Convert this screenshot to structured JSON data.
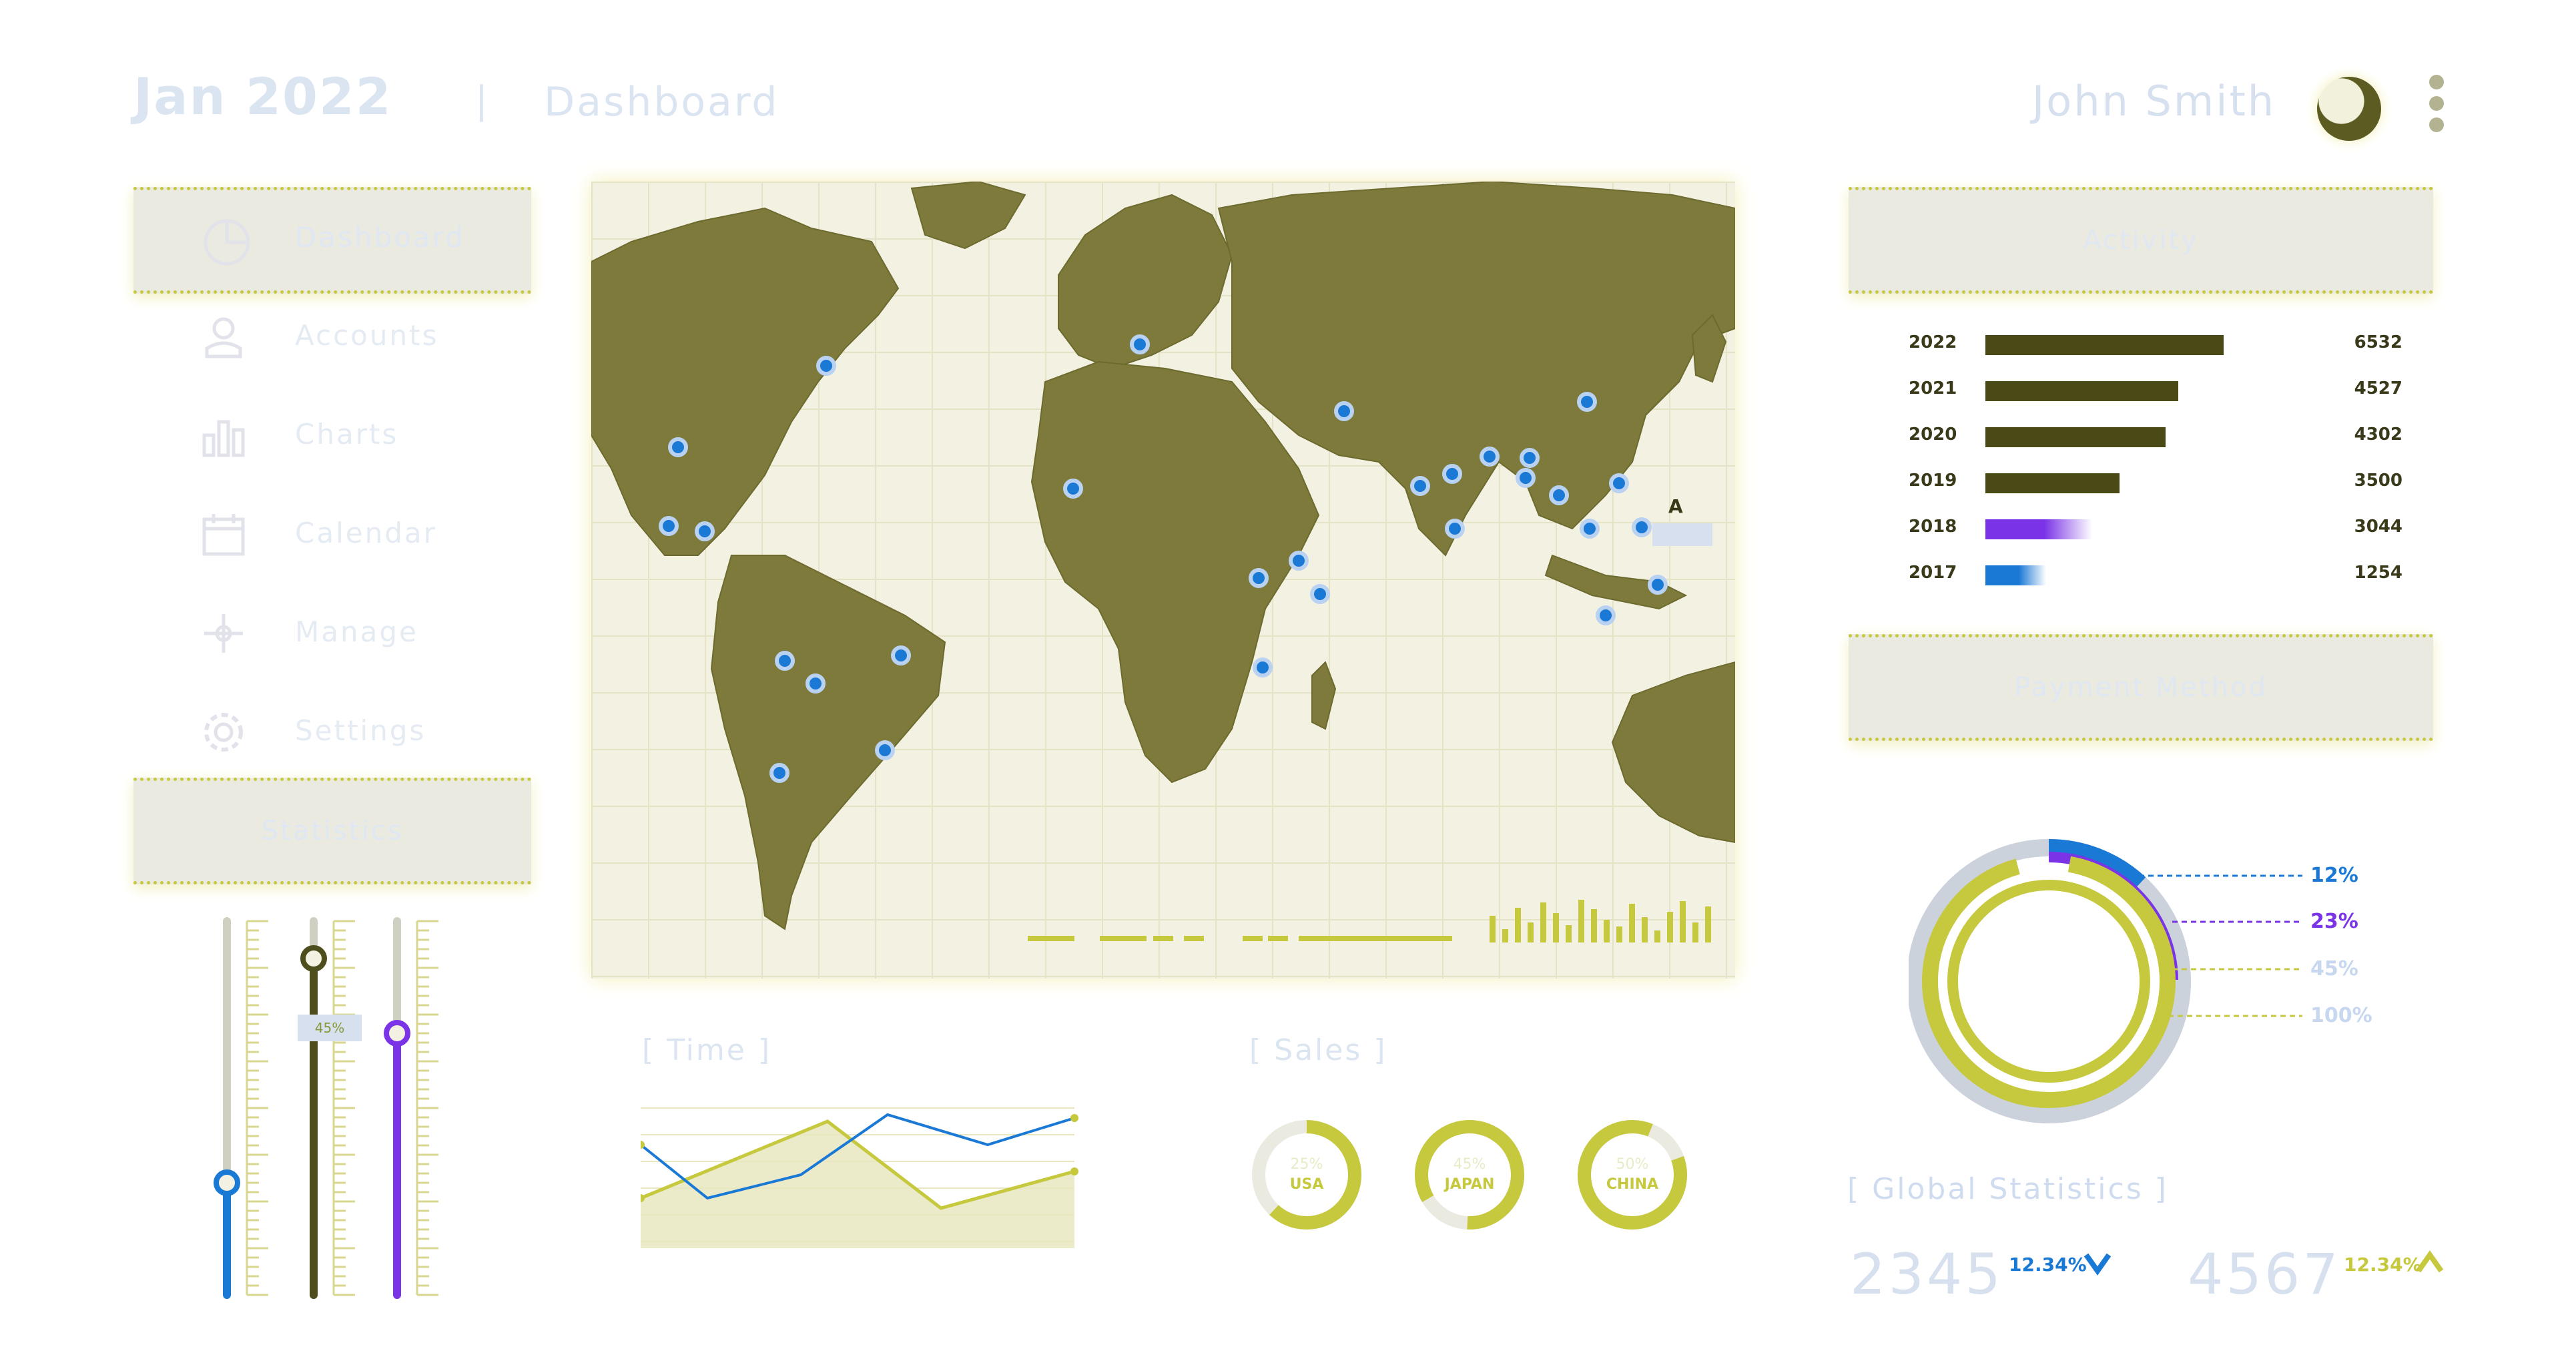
{
  "header": {
    "date": "Jan 2022",
    "separator": "|",
    "section": "Dashboard",
    "user_name": "John Smith"
  },
  "nav": {
    "items": [
      {
        "label": "Dashboard",
        "icon": "pie-chart-icon",
        "active": true
      },
      {
        "label": "Accounts",
        "icon": "user-icon"
      },
      {
        "label": "Charts",
        "icon": "bar-chart-icon"
      },
      {
        "label": "Calendar",
        "icon": "calendar-icon"
      },
      {
        "label": "Manage",
        "icon": "manage-icon"
      },
      {
        "label": "Settings",
        "icon": "gear-icon"
      }
    ],
    "statistics_label": "Statistics"
  },
  "sliders": {
    "values": [
      0.3,
      0.9,
      0.7
    ],
    "colors": [
      "#1b79d6",
      "#4d4d1e",
      "#7a33e6"
    ],
    "tooltip": "45%"
  },
  "map": {
    "label": "A"
  },
  "time_chart": {
    "label": "[ Time ]"
  },
  "sales": {
    "label": "[ Sales ]",
    "items": [
      {
        "pct": "25%",
        "country": "USA"
      },
      {
        "pct": "45%",
        "country": "JAPAN"
      },
      {
        "pct": "50%",
        "country": "CHINA"
      }
    ]
  },
  "activity": {
    "title": "Activity",
    "rows": [
      {
        "year": "2022",
        "value": "6532",
        "fraction": 0.94,
        "color": "#4a4a17"
      },
      {
        "year": "2021",
        "value": "4527",
        "fraction": 0.76,
        "color": "#4a4a17"
      },
      {
        "year": "2020",
        "value": "4302",
        "fraction": 0.71,
        "color": "#4a4a17"
      },
      {
        "year": "2019",
        "value": "3500",
        "fraction": 0.53,
        "color": "#4a4a17"
      },
      {
        "year": "2018",
        "value": "3044",
        "fraction": 0.42,
        "color": "#7a33e6"
      },
      {
        "year": "2017",
        "value": "1254",
        "fraction": 0.24,
        "color": "#1b79d6"
      }
    ]
  },
  "payment": {
    "title": "Payment Method",
    "legend": [
      {
        "pct": "12%",
        "color": "#1b79d6"
      },
      {
        "pct": "23%",
        "color": "#7a33e6"
      },
      {
        "pct": "45%",
        "color": "#c6d7ef"
      },
      {
        "pct": "100%",
        "color": "#c6d7ef"
      }
    ]
  },
  "global": {
    "label": "[ Global Statistics ]",
    "a_value": "2345",
    "a_pct": "12.34%",
    "a_arrow": "down",
    "b_value": "4567",
    "b_pct": "12.34%",
    "b_arrow": "up"
  },
  "colors": {
    "olive": "#6b6b2b",
    "lime": "#c6c83d",
    "blue": "#1b79d6",
    "purple": "#7a33e6",
    "pale_blue": "#dbe5f1"
  }
}
